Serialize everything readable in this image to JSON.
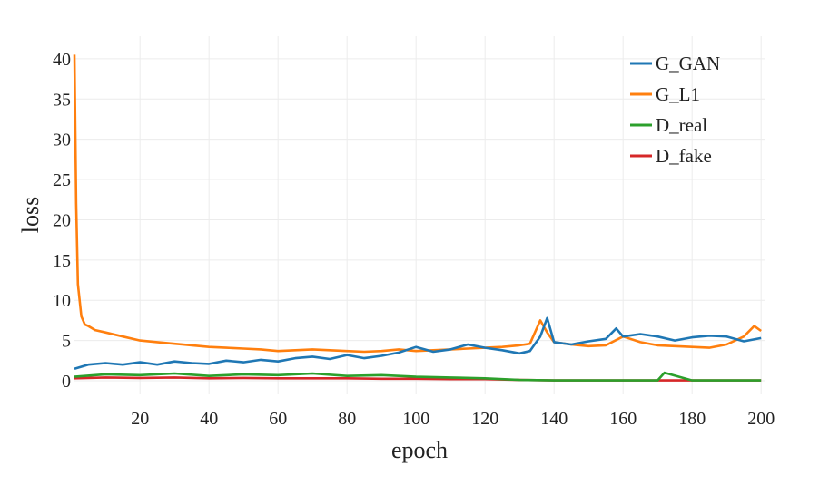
{
  "chart_data": {
    "type": "line",
    "title": "",
    "xlabel": "epoch",
    "ylabel": "loss",
    "xlim": [
      1,
      201
    ],
    "ylim": [
      0,
      41
    ],
    "x_ticks": [
      20,
      40,
      60,
      80,
      100,
      120,
      140,
      160,
      180,
      200
    ],
    "y_ticks": [
      0,
      5,
      10,
      15,
      20,
      25,
      30,
      35,
      40
    ],
    "grid": true,
    "legend_position": "top-right",
    "series": [
      {
        "name": "G_GAN",
        "color": "#1f77b4",
        "x": [
          1,
          5,
          10,
          15,
          20,
          25,
          30,
          35,
          40,
          45,
          50,
          55,
          60,
          65,
          70,
          75,
          80,
          85,
          90,
          95,
          100,
          105,
          110,
          115,
          120,
          125,
          130,
          133,
          136,
          138,
          140,
          145,
          150,
          155,
          158,
          160,
          165,
          170,
          175,
          180,
          185,
          190,
          195,
          200
        ],
        "y": [
          1.5,
          2.0,
          2.2,
          2.0,
          2.3,
          2.0,
          2.4,
          2.2,
          2.1,
          2.5,
          2.3,
          2.6,
          2.4,
          2.8,
          3.0,
          2.7,
          3.2,
          2.8,
          3.1,
          3.5,
          4.2,
          3.6,
          3.9,
          4.5,
          4.1,
          3.8,
          3.4,
          3.7,
          5.5,
          7.8,
          4.8,
          4.5,
          4.9,
          5.2,
          6.5,
          5.5,
          5.8,
          5.5,
          5.0,
          5.4,
          5.6,
          5.5,
          4.9,
          5.3
        ]
      },
      {
        "name": "G_L1",
        "color": "#ff7f0e",
        "x": [
          1,
          1.5,
          2,
          3,
          4,
          5,
          7,
          10,
          15,
          20,
          25,
          30,
          35,
          40,
          45,
          50,
          55,
          60,
          65,
          70,
          75,
          80,
          85,
          90,
          95,
          100,
          105,
          110,
          115,
          120,
          125,
          130,
          133,
          136,
          138,
          140,
          145,
          150,
          155,
          160,
          165,
          170,
          175,
          180,
          185,
          190,
          195,
          198,
          200
        ],
        "y": [
          40.5,
          22,
          12,
          8,
          7,
          6.8,
          6.3,
          6.0,
          5.5,
          5.0,
          4.8,
          4.6,
          4.4,
          4.2,
          4.1,
          4.0,
          3.9,
          3.7,
          3.8,
          3.9,
          3.8,
          3.7,
          3.6,
          3.7,
          3.9,
          3.7,
          3.8,
          3.9,
          4.0,
          4.1,
          4.2,
          4.4,
          4.6,
          7.5,
          6.0,
          4.8,
          4.5,
          4.3,
          4.4,
          5.5,
          4.8,
          4.4,
          4.3,
          4.2,
          4.1,
          4.5,
          5.5,
          6.8,
          6.2
        ]
      },
      {
        "name": "D_real",
        "color": "#2ca02c",
        "x": [
          1,
          10,
          20,
          30,
          40,
          50,
          60,
          70,
          80,
          90,
          100,
          110,
          120,
          125,
          130,
          140,
          150,
          160,
          170,
          172,
          180,
          190,
          200
        ],
        "y": [
          0.5,
          0.8,
          0.7,
          0.9,
          0.6,
          0.8,
          0.7,
          0.9,
          0.6,
          0.7,
          0.5,
          0.4,
          0.3,
          0.2,
          0.1,
          0.05,
          0.05,
          0.05,
          0.05,
          1.0,
          0.05,
          0.05,
          0.05
        ]
      },
      {
        "name": "D_fake",
        "color": "#d62728",
        "x": [
          1,
          10,
          20,
          30,
          40,
          50,
          60,
          70,
          80,
          90,
          100,
          110,
          120,
          130,
          140,
          150,
          160,
          170,
          180,
          190,
          200
        ],
        "y": [
          0.3,
          0.4,
          0.35,
          0.4,
          0.3,
          0.35,
          0.3,
          0.3,
          0.3,
          0.25,
          0.25,
          0.2,
          0.2,
          0.1,
          0.05,
          0.05,
          0.05,
          0.05,
          0.05,
          0.05,
          0.05
        ]
      }
    ]
  }
}
